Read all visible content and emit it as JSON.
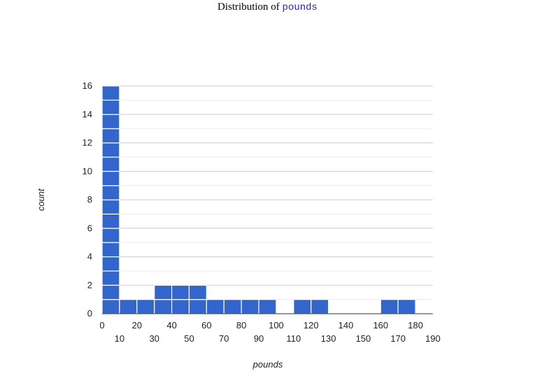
{
  "title": {
    "prefix": "Distribution of",
    "variable": "pounds"
  },
  "chart_data": {
    "type": "bar",
    "subtype": "histogram",
    "xlabel": "pounds",
    "ylabel": "count",
    "bin_width": 10,
    "bins": [
      {
        "start": 0,
        "end": 10,
        "count": 16
      },
      {
        "start": 10,
        "end": 20,
        "count": 1
      },
      {
        "start": 20,
        "end": 30,
        "count": 1
      },
      {
        "start": 30,
        "end": 40,
        "count": 2
      },
      {
        "start": 40,
        "end": 50,
        "count": 2
      },
      {
        "start": 50,
        "end": 60,
        "count": 2
      },
      {
        "start": 60,
        "end": 70,
        "count": 1
      },
      {
        "start": 70,
        "end": 80,
        "count": 1
      },
      {
        "start": 80,
        "end": 90,
        "count": 1
      },
      {
        "start": 90,
        "end": 100,
        "count": 1
      },
      {
        "start": 100,
        "end": 110,
        "count": 0
      },
      {
        "start": 110,
        "end": 120,
        "count": 1
      },
      {
        "start": 120,
        "end": 130,
        "count": 1
      },
      {
        "start": 130,
        "end": 140,
        "count": 0
      },
      {
        "start": 140,
        "end": 150,
        "count": 0
      },
      {
        "start": 150,
        "end": 160,
        "count": 0
      },
      {
        "start": 160,
        "end": 170,
        "count": 1
      },
      {
        "start": 170,
        "end": 180,
        "count": 1
      }
    ],
    "xlim": [
      0,
      190
    ],
    "ylim": [
      0,
      16
    ],
    "x_ticks_upper": [
      "0",
      "20",
      "40",
      "60",
      "80",
      "100",
      "120",
      "140",
      "160",
      "180"
    ],
    "x_ticks_lower": [
      "10",
      "30",
      "50",
      "70",
      "90",
      "110",
      "130",
      "150",
      "170",
      "190"
    ],
    "y_ticks": [
      "0",
      "2",
      "4",
      "6",
      "8",
      "10",
      "12",
      "14",
      "16"
    ],
    "grid": true,
    "bar_color": "#3366cc",
    "grid_major_color": "#cccccc",
    "grid_minor_color": "#ebebeb"
  }
}
